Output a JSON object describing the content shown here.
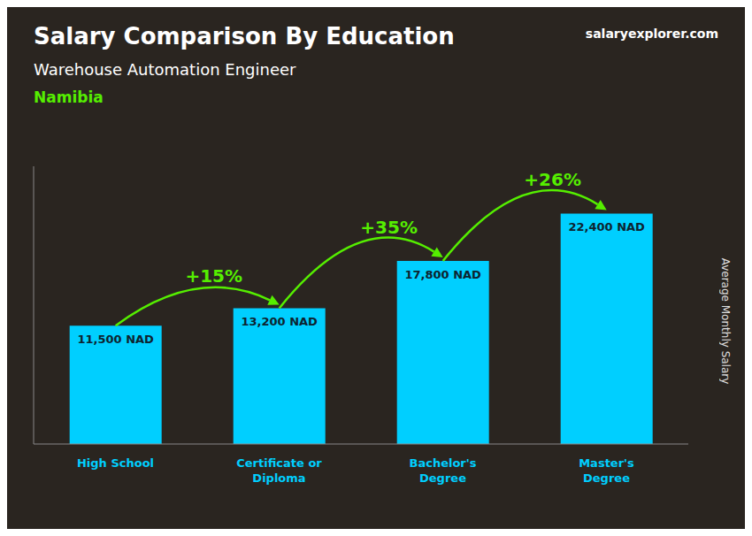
{
  "chart_data": {
    "type": "bar",
    "title": "Salary Comparison By Education",
    "subtitle": "Warehouse Automation Engineer",
    "y_label": "Average Monthly Salary",
    "categories": [
      "High School",
      "Certificate or\nDiploma",
      "Bachelor's\nDegree",
      "Master's\nDegree"
    ],
    "values": [
      11500,
      13200,
      17800,
      22400
    ],
    "value_labels": [
      "11,500 NAD",
      "13,200 NAD",
      "17,800 NAD",
      "22,400 NAD"
    ],
    "data_labels": true,
    "color": "#00CFFF",
    "ylim": [
      0,
      27000
    ],
    "tick_labels": "x",
    "grid": false,
    "annotations": [
      {
        "text": "Namibia",
        "color": "#55EE00"
      },
      {
        "text": "salaryexplorer.com"
      },
      {
        "text": "+15%",
        "between": [
          "High School",
          "Certificate or\nDiploma"
        ],
        "color": "#55EE00"
      },
      {
        "text": "+35%",
        "between": [
          "Certificate or\nDiploma",
          "Bachelor's\nDegree"
        ],
        "color": "#55EE00"
      },
      {
        "text": "+26%",
        "between": [
          "Bachelor's\nDegree",
          "Master's\nDegree"
        ],
        "color": "#55EE00"
      }
    ]
  }
}
